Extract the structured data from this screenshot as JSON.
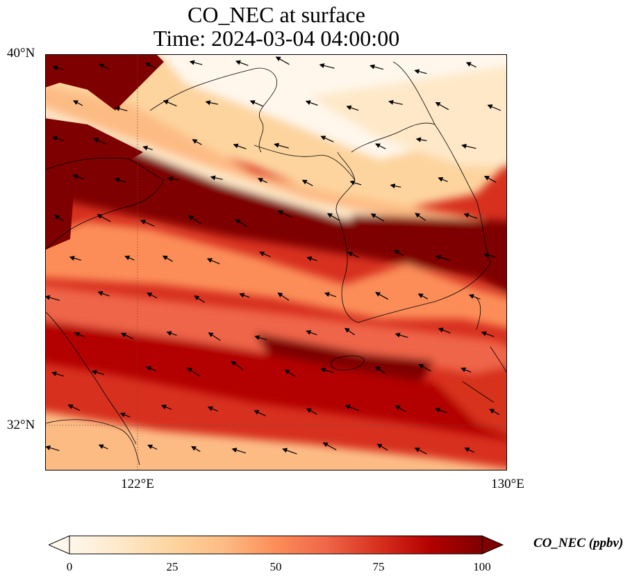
{
  "title": {
    "line1": "CO_NEC at surface",
    "line2": "Time: 2024-03-04 04:00:00"
  },
  "map": {
    "lat_ticks": [
      "40°N",
      "32°N"
    ],
    "lon_ticks": [
      "122°E",
      "130°E"
    ],
    "colormap": "OrRd",
    "gridlines": "dotted",
    "features": [
      "coastline-shandong",
      "coastline-liaoning",
      "coastline-korea",
      "coastline-jeju",
      "coastline-yangtze-mouth",
      "wind-vectors"
    ]
  },
  "colorbar": {
    "label": "CO_NEC (ppbv)",
    "ticks": [
      "0",
      "25",
      "50",
      "75",
      "100"
    ],
    "min": 0,
    "max": 100,
    "extend": "both",
    "colors": [
      "#fff7ec",
      "#fee8c8",
      "#fdd49e",
      "#fdbb84",
      "#fc8d59",
      "#ef6548",
      "#d7301f",
      "#b30000",
      "#7f0000"
    ]
  }
}
